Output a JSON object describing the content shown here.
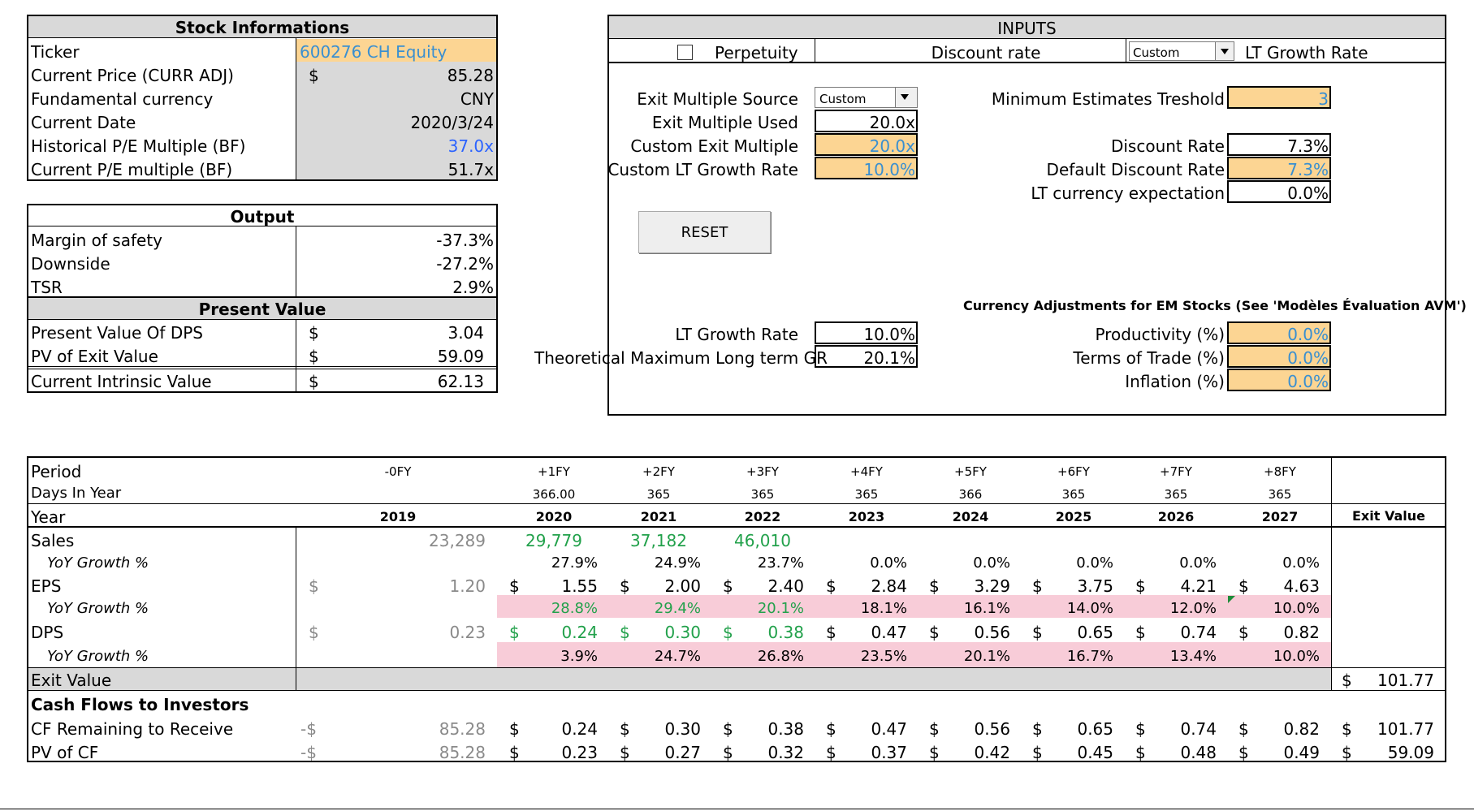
{
  "stock": {
    "header": "Stock Informations",
    "rows": [
      {
        "label": "Ticker",
        "currency": "",
        "value": "600276 CH Equity"
      },
      {
        "label": "Current Price (CURR ADJ)",
        "currency": "$",
        "value": "85.28"
      },
      {
        "label": "Fundamental currency",
        "currency": "",
        "value": "CNY"
      },
      {
        "label": "Current Date",
        "currency": "",
        "value": "2020/3/24"
      },
      {
        "label": "Historical P/E Multiple (BF)",
        "currency": "",
        "value": "37.0x"
      },
      {
        "label": "Current P/E multiple (BF)",
        "currency": "",
        "value": "51.7x"
      }
    ]
  },
  "output": {
    "header": "Output",
    "rows": [
      {
        "label": "Margin of safety",
        "value": "-37.3%"
      },
      {
        "label": "Downside",
        "value": "-27.2%"
      },
      {
        "label": "TSR",
        "value": "2.9%"
      }
    ]
  },
  "present_value": {
    "header": "Present Value",
    "rows": [
      {
        "label": "Present Value Of DPS",
        "currency": "$",
        "value": "3.04"
      },
      {
        "label": "PV of Exit Value",
        "currency": "$",
        "value": "59.09"
      },
      {
        "label": "Current Intrinsic Value",
        "currency": "$",
        "value": "62.13"
      }
    ]
  },
  "inputs": {
    "header": "INPUTS",
    "perpetuity_label": "Perpetuity",
    "perpetuity_checked": false,
    "discount_rate_label": "Discount rate",
    "lt_growth_select": "Custom",
    "lt_growth_rate_label": "LT Growth Rate",
    "exit_multiple_source_label": "Exit Multiple Source",
    "exit_multiple_source_select": "Custom",
    "exit_multiple_used_label": "Exit Multiple Used",
    "exit_multiple_used_value": "20.0x",
    "custom_exit_multiple_label": "Custom Exit Multiple",
    "custom_exit_multiple_value": "20.0x",
    "custom_lt_growth_label": "Custom LT Growth Rate",
    "custom_lt_growth_value": "10.0%",
    "reset_label": "RESET",
    "min_estimates_label": "Minimum Estimates Treshold",
    "min_estimates_value": "3",
    "discount_rate_field_label": "Discount Rate",
    "discount_rate_value": "7.3%",
    "default_discount_label": "Default Discount Rate",
    "default_discount_value": "7.3%",
    "lt_currency_label": "LT currency expectation",
    "lt_currency_value": "0.0%",
    "currency_adj_title": "Currency Adjustments for EM Stocks (See 'Modèles Évaluation AVM')",
    "lt_growth_label": "LT Growth Rate",
    "lt_growth_value": "10.0%",
    "theoretical_max_label": "Theoretical Maximum Long term GR",
    "theoretical_max_value": "20.1%",
    "productivity_label": "Productivity (%)",
    "productivity_value": "0.0%",
    "terms_of_trade_label": "Terms of Trade (%)",
    "terms_of_trade_value": "0.0%",
    "inflation_label": "Inflation (%)",
    "inflation_value": "0.0%"
  },
  "table": {
    "period_label": "Period",
    "days_label": "Days In Year",
    "year_label": "Year",
    "exit_value_header": "Exit Value",
    "periods": [
      "-0FY",
      "+1FY",
      "+2FY",
      "+3FY",
      "+4FY",
      "+5FY",
      "+6FY",
      "+7FY",
      "+8FY"
    ],
    "days": [
      "",
      "366.00",
      "365",
      "365",
      "365",
      "366",
      "365",
      "365",
      "365"
    ],
    "years": [
      "2019",
      "2020",
      "2021",
      "2022",
      "2023",
      "2024",
      "2025",
      "2026",
      "2027"
    ],
    "sales_label": "Sales",
    "sales": [
      "23,289",
      "29,779",
      "37,182",
      "46,010",
      "",
      "",
      "",
      "",
      ""
    ],
    "sales_growth_label": "YoY Growth %",
    "sales_growth": [
      "",
      "27.9%",
      "24.9%",
      "23.7%",
      "0.0%",
      "0.0%",
      "0.0%",
      "0.0%",
      "0.0%"
    ],
    "eps_label": "EPS",
    "eps": [
      "1.20",
      "1.55",
      "2.00",
      "2.40",
      "2.84",
      "3.29",
      "3.75",
      "4.21",
      "4.63"
    ],
    "eps_growth_label": "YoY Growth %",
    "eps_growth": [
      "",
      "28.8%",
      "29.4%",
      "20.1%",
      "18.1%",
      "16.1%",
      "14.0%",
      "12.0%",
      "10.0%"
    ],
    "dps_label": "DPS",
    "dps": [
      "0.23",
      "0.24",
      "0.30",
      "0.38",
      "0.47",
      "0.56",
      "0.65",
      "0.74",
      "0.82"
    ],
    "dps_growth_label": "YoY Growth %",
    "dps_growth": [
      "",
      "3.9%",
      "24.7%",
      "26.8%",
      "23.5%",
      "20.1%",
      "16.7%",
      "13.4%",
      "10.0%"
    ],
    "exit_value_label": "Exit Value",
    "exit_value": "101.77",
    "cash_flows_label": "Cash Flows to Investors",
    "cf_remaining_label": "CF Remaining to Receive",
    "cf_remaining": [
      "85.28",
      "0.24",
      "0.30",
      "0.38",
      "0.47",
      "0.56",
      "0.65",
      "0.74",
      "0.82"
    ],
    "cf_remaining_exit": "101.77",
    "pv_cf_label": "PV of CF",
    "pv_cf": [
      "85.28",
      "0.23",
      "0.27",
      "0.32",
      "0.37",
      "0.42",
      "0.45",
      "0.48",
      "0.49"
    ],
    "pv_cf_exit": "59.09",
    "currency_symbol": "$",
    "neg_currency_symbol": "-$"
  }
}
